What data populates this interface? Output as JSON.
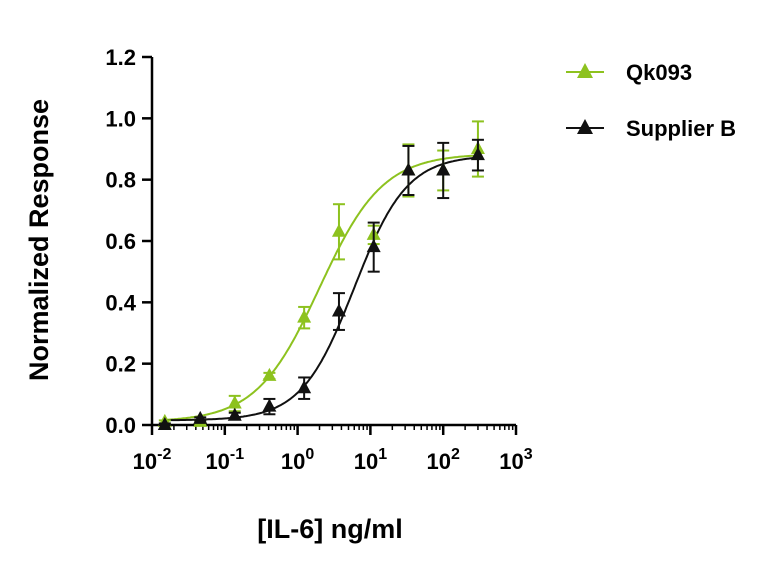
{
  "chart_data": {
    "type": "scatter",
    "title": "",
    "xlabel": "[IL-6] ng/ml",
    "ylabel": "Normalized Response",
    "x_scale": "log",
    "xlim": [
      0.01,
      1000
    ],
    "ylim": [
      0,
      1.2
    ],
    "x_ticks": [
      {
        "value": 0.01,
        "base": "10",
        "exp": "-2"
      },
      {
        "value": 0.1,
        "base": "10",
        "exp": "-1"
      },
      {
        "value": 1,
        "base": "10",
        "exp": "0"
      },
      {
        "value": 10,
        "base": "10",
        "exp": "1"
      },
      {
        "value": 100,
        "base": "10",
        "exp": "2"
      },
      {
        "value": 1000,
        "base": "10",
        "exp": "3"
      }
    ],
    "y_ticks": [
      {
        "value": 0,
        "label": "0.0"
      },
      {
        "value": 0.2,
        "label": "0.2"
      },
      {
        "value": 0.4,
        "label": "0.4"
      },
      {
        "value": 0.6,
        "label": "0.6"
      },
      {
        "value": 0.8,
        "label": "0.8"
      },
      {
        "value": 1.0,
        "label": "1.0"
      },
      {
        "value": 1.2,
        "label": "1.2"
      }
    ],
    "grid": false,
    "legend_position": "top-right",
    "series": [
      {
        "name": "Qk093",
        "color": "#8dc21f",
        "marker": "triangle",
        "fit_curve": true,
        "x": [
          0.015,
          0.046,
          0.137,
          0.41,
          1.23,
          3.7,
          11.1,
          33.3,
          100,
          300
        ],
        "y": [
          0.01,
          0.01,
          0.07,
          0.16,
          0.35,
          0.63,
          0.62,
          0.83,
          0.83,
          0.9
        ],
        "error": [
          0.005,
          0.005,
          0.025,
          0.01,
          0.035,
          0.09,
          0.03,
          0.085,
          0.065,
          0.09
        ],
        "fit": {
          "bottom": 0.01,
          "top": 0.885,
          "ec50": 2.0,
          "hill": 1.0
        }
      },
      {
        "name": "Supplier B",
        "color": "#111111",
        "marker": "triangle",
        "fit_curve": true,
        "x": [
          0.015,
          0.046,
          0.137,
          0.41,
          1.23,
          3.7,
          11.1,
          33.3,
          100,
          300
        ],
        "y": [
          0.0,
          0.02,
          0.03,
          0.06,
          0.12,
          0.37,
          0.58,
          0.83,
          0.83,
          0.88
        ],
        "error": [
          0.005,
          0.005,
          0.01,
          0.025,
          0.035,
          0.06,
          0.08,
          0.08,
          0.09,
          0.05
        ],
        "fit": {
          "bottom": 0.015,
          "top": 0.88,
          "ec50": 6.0,
          "hill": 1.2
        }
      }
    ]
  }
}
